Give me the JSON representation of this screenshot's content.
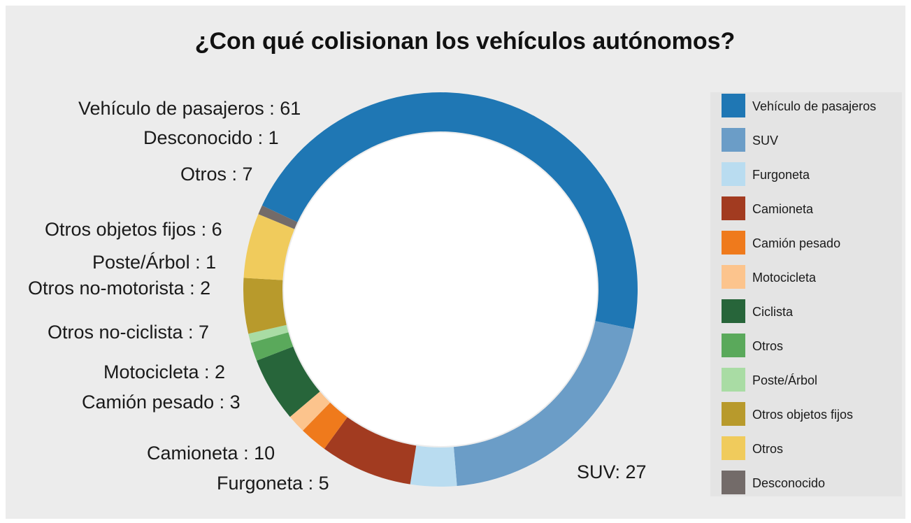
{
  "chart_data": {
    "type": "pie",
    "title": "¿Con qué colisionan los vehículos autónomos?",
    "slices": [
      {
        "name": "Vehículo de pasajeros",
        "value": 61,
        "label": "Vehículo de pasajeros : 61",
        "color": "#1f77b4"
      },
      {
        "name": "SUV",
        "value": 27,
        "label": "SUV: 27",
        "color": "#6b9dc7"
      },
      {
        "name": "Furgoneta",
        "value": 5,
        "label": "Furgoneta : 5",
        "color": "#b9dcf0"
      },
      {
        "name": "Camioneta",
        "value": 10,
        "label": "Camioneta : 10",
        "color": "#a23b20"
      },
      {
        "name": "Camión pesado",
        "value": 3,
        "label": "Camión pesado : 3",
        "color": "#ef7a1c"
      },
      {
        "name": "Motocicleta",
        "value": 2,
        "label": "Motocicleta : 2",
        "color": "#fcc48d"
      },
      {
        "name": "Ciclista",
        "value": 7,
        "label": "Otros no-ciclista : 7",
        "color": "#27653a"
      },
      {
        "name": "Otros",
        "value": 2,
        "label": "Otros no-motorista : 2",
        "color": "#5aa95b"
      },
      {
        "name": "Poste/Árbol",
        "value": 1,
        "label": "Poste/Árbol : 1",
        "color": "#a9dca4"
      },
      {
        "name": "Otros objetos fijos",
        "value": 6,
        "label": "Otros objetos fijos : 6",
        "color": "#b89a2c"
      },
      {
        "name": "Otros",
        "value": 7,
        "label": "Otros : 7",
        "color": "#f0cb5c"
      },
      {
        "name": "Desconocido",
        "value": 1,
        "label": "Desconocido : 1",
        "color": "#736b69"
      }
    ],
    "legend_position": "right"
  }
}
